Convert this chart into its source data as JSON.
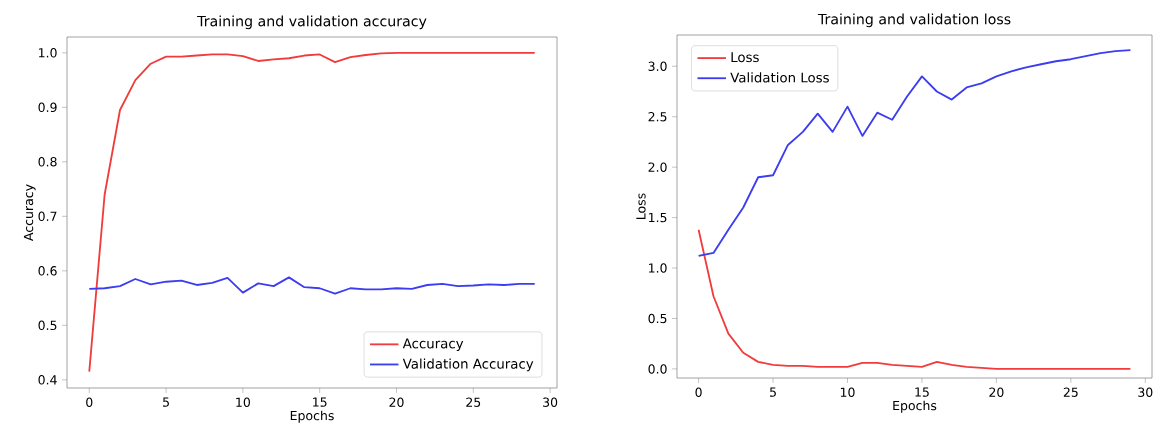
{
  "chart_data": [
    {
      "type": "line",
      "title": "Training and validation accuracy",
      "xlabel": "Epochs",
      "ylabel": "Accuracy",
      "x": [
        0,
        1,
        2,
        3,
        4,
        5,
        6,
        7,
        8,
        9,
        10,
        11,
        12,
        13,
        14,
        15,
        16,
        17,
        18,
        19,
        20,
        21,
        22,
        23,
        24,
        25,
        26,
        27,
        28,
        29
      ],
      "series": [
        {
          "name": "Accuracy",
          "color": "#f03c3c",
          "values": [
            0.415,
            0.74,
            0.895,
            0.95,
            0.98,
            0.993,
            0.993,
            0.995,
            0.997,
            0.997,
            0.994,
            0.985,
            0.988,
            0.99,
            0.995,
            0.997,
            0.983,
            0.992,
            0.996,
            0.999,
            1.0,
            1.0,
            1.0,
            1.0,
            1.0,
            1.0,
            1.0,
            1.0,
            1.0,
            1.0
          ]
        },
        {
          "name": "Validation Accuracy",
          "color": "#3c3cf0",
          "values": [
            0.567,
            0.568,
            0.572,
            0.585,
            0.575,
            0.58,
            0.582,
            0.574,
            0.578,
            0.587,
            0.56,
            0.577,
            0.572,
            0.588,
            0.57,
            0.568,
            0.558,
            0.568,
            0.566,
            0.566,
            0.568,
            0.567,
            0.574,
            0.576,
            0.572,
            0.573,
            0.575,
            0.574,
            0.576,
            0.576
          ]
        }
      ],
      "xlim": [
        -1.45,
        30.45
      ],
      "ylim": [
        0.385,
        1.029
      ],
      "xticks": [
        0,
        5,
        10,
        15,
        20,
        25,
        30
      ],
      "yticks": [
        0.4,
        0.5,
        0.6,
        0.7,
        0.8,
        0.9,
        {
          "value": 1.0,
          "label": "1.0"
        }
      ],
      "legend": "bottom right",
      "grid": false
    },
    {
      "type": "line",
      "title": "Training and validation loss",
      "xlabel": "Epochs",
      "ylabel": "Loss",
      "x": [
        0,
        1,
        2,
        3,
        4,
        5,
        6,
        7,
        8,
        9,
        10,
        11,
        12,
        13,
        14,
        15,
        16,
        17,
        18,
        19,
        20,
        21,
        22,
        23,
        24,
        25,
        26,
        27,
        28,
        29
      ],
      "series": [
        {
          "name": "Loss",
          "color": "#f03c3c",
          "values": [
            1.38,
            0.72,
            0.35,
            0.16,
            0.07,
            0.04,
            0.03,
            0.03,
            0.02,
            0.02,
            0.02,
            0.06,
            0.06,
            0.04,
            0.03,
            0.02,
            0.07,
            0.04,
            0.02,
            0.01,
            0.0,
            0.0,
            0.0,
            0.0,
            0.0,
            0.0,
            0.0,
            0.0,
            0.0,
            0.0
          ]
        },
        {
          "name": "Validation Loss",
          "color": "#3c3cf0",
          "values": [
            1.12,
            1.15,
            1.38,
            1.6,
            1.9,
            1.92,
            2.22,
            2.35,
            2.53,
            2.35,
            2.6,
            2.31,
            2.54,
            2.47,
            2.7,
            2.9,
            2.75,
            2.67,
            2.79,
            2.83,
            2.9,
            2.95,
            2.99,
            3.02,
            3.05,
            3.07,
            3.1,
            3.13,
            3.15,
            3.16
          ]
        }
      ],
      "xlim": [
        -1.45,
        30.45
      ],
      "ylim": [
        -0.09,
        3.31
      ],
      "xticks": [
        0,
        5,
        10,
        15,
        20,
        25,
        30
      ],
      "yticks": [
        {
          "value": 0.0,
          "label": "0.0"
        },
        0.5,
        {
          "value": 1.0,
          "label": "1.0"
        },
        1.5,
        {
          "value": 2.0,
          "label": "2.0"
        },
        2.5,
        {
          "value": 3.0,
          "label": "3.0"
        }
      ],
      "legend": "top left",
      "grid": false
    }
  ]
}
